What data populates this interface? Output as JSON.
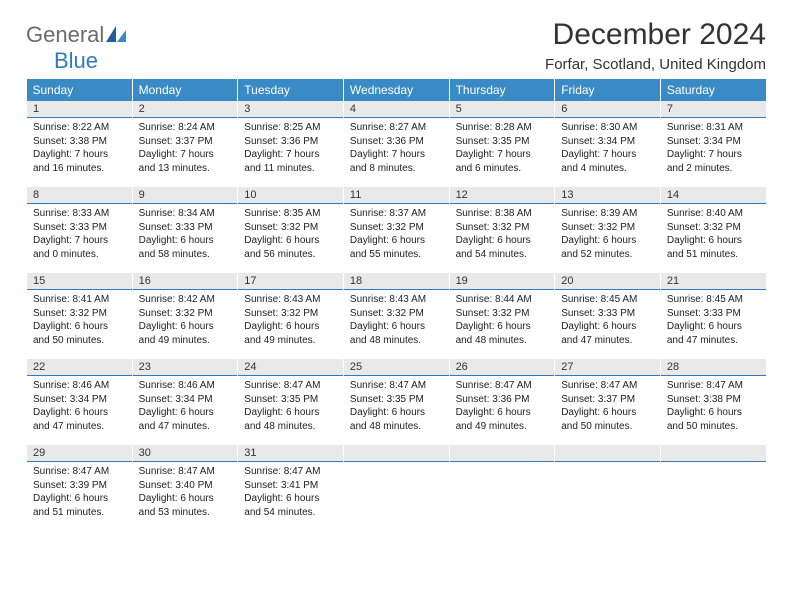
{
  "brand": {
    "word1": "General",
    "word2": "Blue"
  },
  "colors": {
    "header_bg": "#3a8ac6",
    "header_text": "#ffffff",
    "daynum_bg": "#e9e9e9",
    "divider": "#2f7bc2",
    "page_bg": "#ffffff",
    "text": "#222222",
    "logo_gray": "#6b6b6b",
    "logo_blue": "#2f7bc2"
  },
  "title": "December 2024",
  "location": "Forfar, Scotland, United Kingdom",
  "weekdays": [
    "Sunday",
    "Monday",
    "Tuesday",
    "Wednesday",
    "Thursday",
    "Friday",
    "Saturday"
  ],
  "weeks": [
    [
      {
        "n": "1",
        "sr": "Sunrise: 8:22 AM",
        "ss": "Sunset: 3:38 PM",
        "d1": "Daylight: 7 hours",
        "d2": "and 16 minutes."
      },
      {
        "n": "2",
        "sr": "Sunrise: 8:24 AM",
        "ss": "Sunset: 3:37 PM",
        "d1": "Daylight: 7 hours",
        "d2": "and 13 minutes."
      },
      {
        "n": "3",
        "sr": "Sunrise: 8:25 AM",
        "ss": "Sunset: 3:36 PM",
        "d1": "Daylight: 7 hours",
        "d2": "and 11 minutes."
      },
      {
        "n": "4",
        "sr": "Sunrise: 8:27 AM",
        "ss": "Sunset: 3:36 PM",
        "d1": "Daylight: 7 hours",
        "d2": "and 8 minutes."
      },
      {
        "n": "5",
        "sr": "Sunrise: 8:28 AM",
        "ss": "Sunset: 3:35 PM",
        "d1": "Daylight: 7 hours",
        "d2": "and 6 minutes."
      },
      {
        "n": "6",
        "sr": "Sunrise: 8:30 AM",
        "ss": "Sunset: 3:34 PM",
        "d1": "Daylight: 7 hours",
        "d2": "and 4 minutes."
      },
      {
        "n": "7",
        "sr": "Sunrise: 8:31 AM",
        "ss": "Sunset: 3:34 PM",
        "d1": "Daylight: 7 hours",
        "d2": "and 2 minutes."
      }
    ],
    [
      {
        "n": "8",
        "sr": "Sunrise: 8:33 AM",
        "ss": "Sunset: 3:33 PM",
        "d1": "Daylight: 7 hours",
        "d2": "and 0 minutes."
      },
      {
        "n": "9",
        "sr": "Sunrise: 8:34 AM",
        "ss": "Sunset: 3:33 PM",
        "d1": "Daylight: 6 hours",
        "d2": "and 58 minutes."
      },
      {
        "n": "10",
        "sr": "Sunrise: 8:35 AM",
        "ss": "Sunset: 3:32 PM",
        "d1": "Daylight: 6 hours",
        "d2": "and 56 minutes."
      },
      {
        "n": "11",
        "sr": "Sunrise: 8:37 AM",
        "ss": "Sunset: 3:32 PM",
        "d1": "Daylight: 6 hours",
        "d2": "and 55 minutes."
      },
      {
        "n": "12",
        "sr": "Sunrise: 8:38 AM",
        "ss": "Sunset: 3:32 PM",
        "d1": "Daylight: 6 hours",
        "d2": "and 54 minutes."
      },
      {
        "n": "13",
        "sr": "Sunrise: 8:39 AM",
        "ss": "Sunset: 3:32 PM",
        "d1": "Daylight: 6 hours",
        "d2": "and 52 minutes."
      },
      {
        "n": "14",
        "sr": "Sunrise: 8:40 AM",
        "ss": "Sunset: 3:32 PM",
        "d1": "Daylight: 6 hours",
        "d2": "and 51 minutes."
      }
    ],
    [
      {
        "n": "15",
        "sr": "Sunrise: 8:41 AM",
        "ss": "Sunset: 3:32 PM",
        "d1": "Daylight: 6 hours",
        "d2": "and 50 minutes."
      },
      {
        "n": "16",
        "sr": "Sunrise: 8:42 AM",
        "ss": "Sunset: 3:32 PM",
        "d1": "Daylight: 6 hours",
        "d2": "and 49 minutes."
      },
      {
        "n": "17",
        "sr": "Sunrise: 8:43 AM",
        "ss": "Sunset: 3:32 PM",
        "d1": "Daylight: 6 hours",
        "d2": "and 49 minutes."
      },
      {
        "n": "18",
        "sr": "Sunrise: 8:43 AM",
        "ss": "Sunset: 3:32 PM",
        "d1": "Daylight: 6 hours",
        "d2": "and 48 minutes."
      },
      {
        "n": "19",
        "sr": "Sunrise: 8:44 AM",
        "ss": "Sunset: 3:32 PM",
        "d1": "Daylight: 6 hours",
        "d2": "and 48 minutes."
      },
      {
        "n": "20",
        "sr": "Sunrise: 8:45 AM",
        "ss": "Sunset: 3:33 PM",
        "d1": "Daylight: 6 hours",
        "d2": "and 47 minutes."
      },
      {
        "n": "21",
        "sr": "Sunrise: 8:45 AM",
        "ss": "Sunset: 3:33 PM",
        "d1": "Daylight: 6 hours",
        "d2": "and 47 minutes."
      }
    ],
    [
      {
        "n": "22",
        "sr": "Sunrise: 8:46 AM",
        "ss": "Sunset: 3:34 PM",
        "d1": "Daylight: 6 hours",
        "d2": "and 47 minutes."
      },
      {
        "n": "23",
        "sr": "Sunrise: 8:46 AM",
        "ss": "Sunset: 3:34 PM",
        "d1": "Daylight: 6 hours",
        "d2": "and 47 minutes."
      },
      {
        "n": "24",
        "sr": "Sunrise: 8:47 AM",
        "ss": "Sunset: 3:35 PM",
        "d1": "Daylight: 6 hours",
        "d2": "and 48 minutes."
      },
      {
        "n": "25",
        "sr": "Sunrise: 8:47 AM",
        "ss": "Sunset: 3:35 PM",
        "d1": "Daylight: 6 hours",
        "d2": "and 48 minutes."
      },
      {
        "n": "26",
        "sr": "Sunrise: 8:47 AM",
        "ss": "Sunset: 3:36 PM",
        "d1": "Daylight: 6 hours",
        "d2": "and 49 minutes."
      },
      {
        "n": "27",
        "sr": "Sunrise: 8:47 AM",
        "ss": "Sunset: 3:37 PM",
        "d1": "Daylight: 6 hours",
        "d2": "and 50 minutes."
      },
      {
        "n": "28",
        "sr": "Sunrise: 8:47 AM",
        "ss": "Sunset: 3:38 PM",
        "d1": "Daylight: 6 hours",
        "d2": "and 50 minutes."
      }
    ],
    [
      {
        "n": "29",
        "sr": "Sunrise: 8:47 AM",
        "ss": "Sunset: 3:39 PM",
        "d1": "Daylight: 6 hours",
        "d2": "and 51 minutes."
      },
      {
        "n": "30",
        "sr": "Sunrise: 8:47 AM",
        "ss": "Sunset: 3:40 PM",
        "d1": "Daylight: 6 hours",
        "d2": "and 53 minutes."
      },
      {
        "n": "31",
        "sr": "Sunrise: 8:47 AM",
        "ss": "Sunset: 3:41 PM",
        "d1": "Daylight: 6 hours",
        "d2": "and 54 minutes."
      },
      {
        "n": "",
        "empty": true
      },
      {
        "n": "",
        "empty": true
      },
      {
        "n": "",
        "empty": true
      },
      {
        "n": "",
        "empty": true
      }
    ]
  ]
}
